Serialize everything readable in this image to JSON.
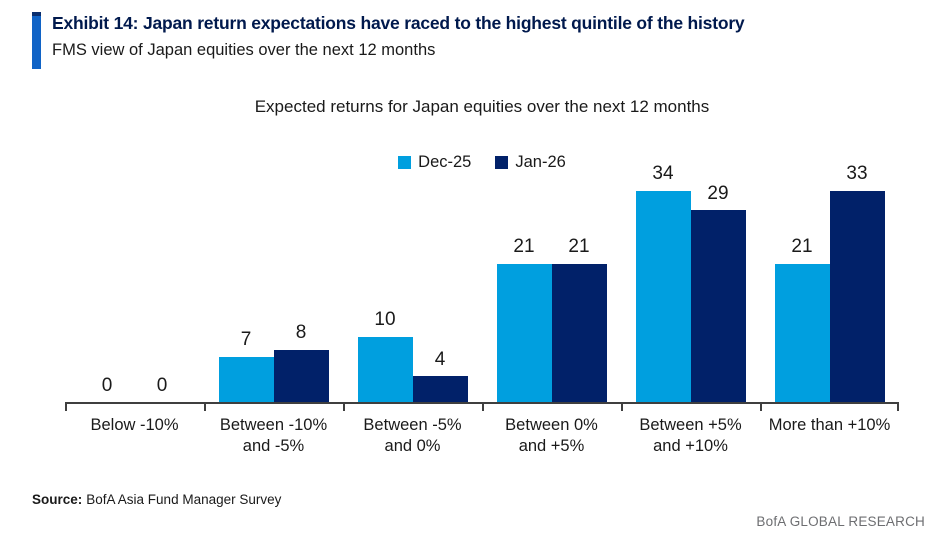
{
  "header": {
    "exhibit_title": "Exhibit 14: Japan return expectations have raced to the highest quintile of the history",
    "subtitle": "FMS view of Japan equities over the next 12 months"
  },
  "chart_data": {
    "type": "bar",
    "title": "Expected returns for Japan equities over the next 12 months",
    "categories": [
      "Below -10%",
      "Between -10%\nand -5%",
      "Between -5%\nand 0%",
      "Between 0%\nand +5%",
      "Between +5%\nand +10%",
      "More than +10%"
    ],
    "series": [
      {
        "name": "Dec-25",
        "color": "#009FDF",
        "values": [
          0,
          7,
          10,
          21,
          34,
          21
        ]
      },
      {
        "name": "Jan-26",
        "color": "#012169",
        "values": [
          0,
          8,
          4,
          21,
          29,
          33
        ]
      }
    ],
    "ylim": [
      0,
      36
    ],
    "grid": false,
    "legend_position": "top-center",
    "value_labels": true,
    "xlabel": "",
    "ylabel": ""
  },
  "footer": {
    "source_label": "Source:",
    "source_text": "BofA Asia Fund Manager Survey",
    "brand": "BofA GLOBAL RESEARCH"
  },
  "colors": {
    "accent_bar": "#1063C6",
    "accent_bar_cap": "#0A2E6E",
    "series_dec25": "#009FDF",
    "series_jan26": "#012169",
    "axis": "#3F3F3F",
    "title_text": "#00194D",
    "brand_text": "#6D6E71"
  }
}
